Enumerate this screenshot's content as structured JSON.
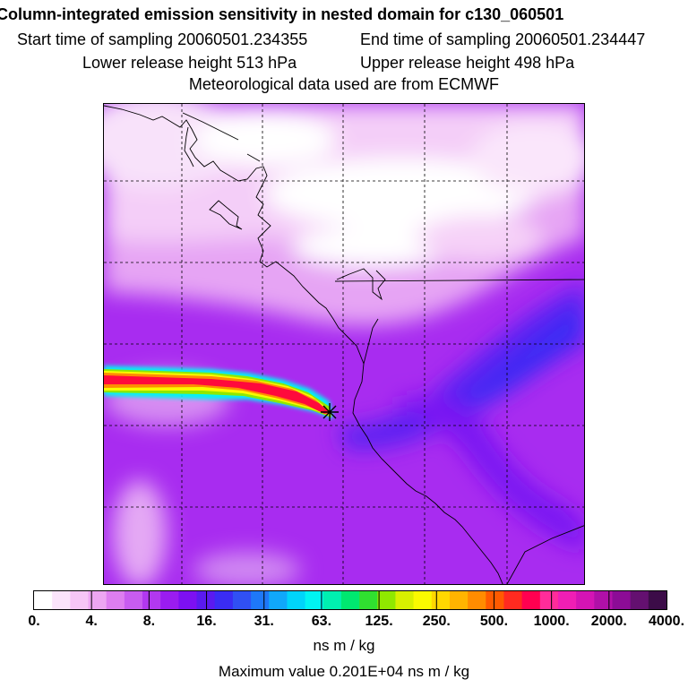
{
  "header": {
    "title": "Column-integrated emission sensitivity in nested domain for c130_060501",
    "start_time": "Start time of sampling 20060501.234355",
    "end_time": "End time of sampling 20060501.234447",
    "lower_height": "Lower release height  513 hPa",
    "upper_height": "Upper release height  498 hPa",
    "met_data": "Meteorological data used are from ECMWF"
  },
  "map": {
    "release_marker": "star-asterisk",
    "colors": {
      "background_low": "#f2c8f6",
      "mid": "#b036f0",
      "high": "#5a1ef0",
      "plume_core": "#ff0a3c",
      "plume_edge": "#00ffff"
    }
  },
  "legend": {
    "tick_labels": [
      "0.",
      "4.",
      "8.",
      "16.",
      "31.",
      "63.",
      "125.",
      "250.",
      "500.",
      "1000.",
      "2000.",
      "4000."
    ],
    "units": "ns m / kg",
    "max_value": "Maximum value  0.201E+04 ns m / kg",
    "colors": [
      "#ffffff",
      "#fbe4fb",
      "#f6c6f6",
      "#eda6f2",
      "#de7ef0",
      "#c85cf0",
      "#b238f0",
      "#9a1cf0",
      "#7d10f2",
      "#5a1af0",
      "#3a2cf4",
      "#3050f4",
      "#1e78f8",
      "#10a8fa",
      "#00d4fa",
      "#00f4f2",
      "#00f0b0",
      "#00e870",
      "#30e030",
      "#90e800",
      "#d8f000",
      "#fafa00",
      "#ffd800",
      "#ffb400",
      "#ff8c00",
      "#ff5a00",
      "#ff2a20",
      "#ff0050",
      "#ff2c9a",
      "#f01eb4",
      "#d414b4",
      "#b010a8",
      "#8c0c96",
      "#641070",
      "#3c0c48"
    ]
  }
}
